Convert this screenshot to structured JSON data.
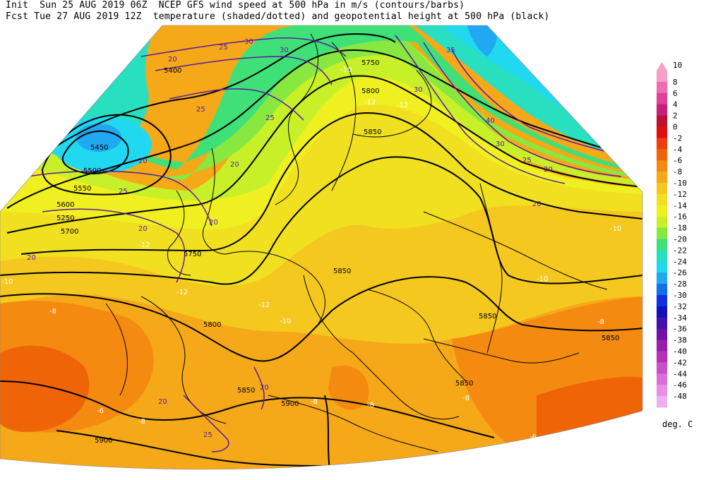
{
  "header": {
    "line1": "Init  Sun 25 AUG 2019 06Z  NCEP GFS wind speed at 500 hPa in m/s (contours/barbs)",
    "line2": "Fcst Tue 27 AUG 2019 12Z  temperature (shaded/dotted) and geopotential height at 500 hPa (black)"
  },
  "colorbar": {
    "unit": "deg. C",
    "levels": [
      {
        "label": "10",
        "color": "#f5a0c8"
      },
      {
        "label": "8",
        "color": "#f06ab4"
      },
      {
        "label": "6",
        "color": "#e0409a"
      },
      {
        "label": "4",
        "color": "#c8207a"
      },
      {
        "label": "2",
        "color": "#c01030"
      },
      {
        "label": "0",
        "color": "#e01010"
      },
      {
        "label": "-2",
        "color": "#f03c10"
      },
      {
        "label": "-4",
        "color": "#f06408"
      },
      {
        "label": "-6",
        "color": "#f58a10"
      },
      {
        "label": "-8",
        "color": "#f5a818"
      },
      {
        "label": "-10",
        "color": "#f5c820"
      },
      {
        "label": "-12",
        "color": "#f0e020"
      },
      {
        "label": "-14",
        "color": "#f0f020"
      },
      {
        "label": "-16",
        "color": "#c8f028"
      },
      {
        "label": "-18",
        "color": "#88e840"
      },
      {
        "label": "-20",
        "color": "#40e078"
      },
      {
        "label": "-22",
        "color": "#28e0c0"
      },
      {
        "label": "-24",
        "color": "#20d8f0"
      },
      {
        "label": "-26",
        "color": "#20a8f0"
      },
      {
        "label": "-28",
        "color": "#1070f0"
      },
      {
        "label": "-30",
        "color": "#1030e8"
      },
      {
        "label": "-32",
        "color": "#1010c0"
      },
      {
        "label": "-34",
        "color": "#4010b0"
      },
      {
        "label": "-36",
        "color": "#7010a8"
      },
      {
        "label": "-38",
        "color": "#9820a8"
      },
      {
        "label": "-40",
        "color": "#b830b8"
      },
      {
        "label": "-42",
        "color": "#c850c8"
      },
      {
        "label": "-44",
        "color": "#d870d8"
      },
      {
        "label": "-46",
        "color": "#e890e8"
      },
      {
        "label": "-48",
        "color": "#f0b0f0"
      }
    ]
  },
  "height_labels": [
    {
      "text": "5450"
    },
    {
      "text": "5500"
    },
    {
      "text": "5550"
    },
    {
      "text": "5600"
    },
    {
      "text": "5250"
    },
    {
      "text": "5700"
    },
    {
      "text": "5750"
    },
    {
      "text": "5750"
    },
    {
      "text": "5800"
    },
    {
      "text": "5850"
    },
    {
      "text": "5850"
    },
    {
      "text": "5850"
    },
    {
      "text": "5850"
    },
    {
      "text": "5850"
    },
    {
      "text": "5800"
    },
    {
      "text": "5850"
    },
    {
      "text": "5900"
    },
    {
      "text": "5900"
    },
    {
      "text": "5400"
    }
  ],
  "wind_labels": [
    {
      "text": "25"
    },
    {
      "text": "25"
    },
    {
      "text": "20"
    },
    {
      "text": "25"
    },
    {
      "text": "25"
    },
    {
      "text": "20"
    },
    {
      "text": "20"
    },
    {
      "text": "20"
    },
    {
      "text": "30"
    },
    {
      "text": "30"
    },
    {
      "text": "35"
    },
    {
      "text": "30"
    },
    {
      "text": "40"
    },
    {
      "text": "30"
    },
    {
      "text": "25"
    },
    {
      "text": "20"
    },
    {
      "text": "20"
    },
    {
      "text": "20"
    },
    {
      "text": "20"
    },
    {
      "text": "25"
    },
    {
      "text": "20"
    },
    {
      "text": "20"
    }
  ],
  "temp_labels": [
    {
      "text": "-12"
    },
    {
      "text": "-12"
    },
    {
      "text": "-10"
    },
    {
      "text": "-12"
    },
    {
      "text": "-10"
    },
    {
      "text": "-8"
    },
    {
      "text": "-10"
    },
    {
      "text": "-10"
    },
    {
      "text": "-8"
    },
    {
      "text": "-8"
    },
    {
      "text": "-8"
    },
    {
      "text": "-6"
    },
    {
      "text": "-8"
    },
    {
      "text": "-6"
    },
    {
      "text": "-12"
    },
    {
      "text": "-10"
    },
    {
      "text": "-12"
    },
    {
      "text": "-8"
    }
  ]
}
